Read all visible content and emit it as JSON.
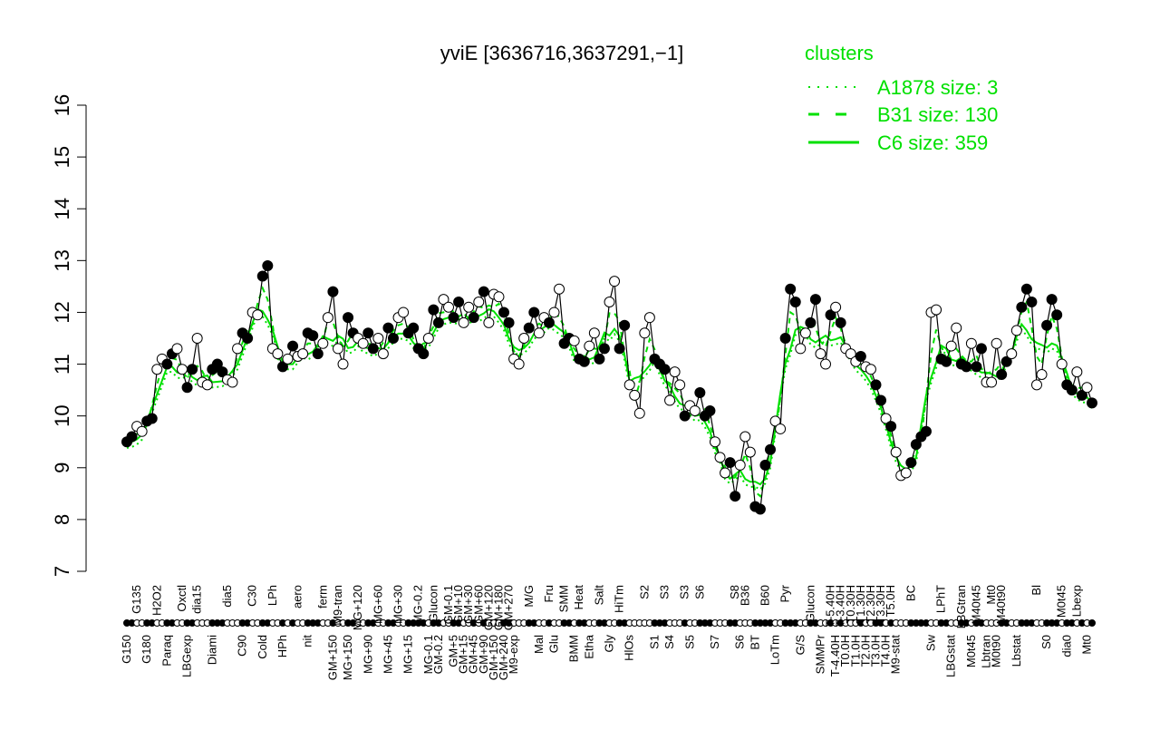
{
  "chart_data": {
    "type": "scatter",
    "title": "yviE [3636716,3637291,−1]",
    "xlabel": "",
    "ylabel": "",
    "ylim": [
      7,
      16
    ],
    "yticks": [
      7,
      8,
      9,
      10,
      11,
      12,
      13,
      14,
      15,
      16
    ],
    "grid": false,
    "legend": {
      "title": "clusters",
      "placement": "top-right",
      "entries": [
        {
          "name": "A1878 size: 3",
          "style": "dotted"
        },
        {
          "name": "B31 size: 130",
          "style": "dashed"
        },
        {
          "name": "C6 size: 359",
          "style": "solid"
        }
      ]
    },
    "colors": {
      "clusters": "#00e000",
      "points": "#000000"
    },
    "points": [
      [
        "G150",
        9.5,
        1
      ],
      [
        "G150",
        9.6,
        1
      ],
      [
        "G135",
        9.8,
        0
      ],
      [
        "G135",
        9.7,
        0
      ],
      [
        "G180",
        9.9,
        1
      ],
      [
        "G180",
        9.95,
        1
      ],
      [
        "H2O2",
        10.9,
        0
      ],
      [
        "H2O2",
        11.1,
        0
      ],
      [
        "Paraq",
        11.0,
        1
      ],
      [
        "Paraq",
        11.2,
        1
      ],
      [
        "Paraq",
        11.3,
        0
      ],
      [
        "Oxctl",
        10.9,
        0
      ],
      [
        "LBGexp",
        10.55,
        1
      ],
      [
        "LBGexp",
        10.9,
        1
      ],
      [
        "dia15",
        11.5,
        0
      ],
      [
        "dia15",
        10.65,
        0
      ],
      [
        "dia15",
        10.6,
        0
      ],
      [
        "Diami",
        10.9,
        1
      ],
      [
        "Diami",
        11.0,
        1
      ],
      [
        "Diami",
        10.85,
        1
      ],
      [
        "dia5",
        10.7,
        0
      ],
      [
        "dia5",
        10.65,
        0
      ],
      [
        "dia5",
        11.3,
        0
      ],
      [
        "C90",
        11.6,
        1
      ],
      [
        "C90",
        11.5,
        1
      ],
      [
        "C30",
        12.0,
        0
      ],
      [
        "C30",
        11.95,
        0
      ],
      [
        "Cold",
        12.7,
        1
      ],
      [
        "Cold",
        12.9,
        1
      ],
      [
        "LPh",
        11.3,
        0
      ],
      [
        "LPh",
        11.2,
        0
      ],
      [
        "HPh",
        10.95,
        1
      ],
      [
        "HPh",
        11.1,
        0
      ],
      [
        "HPh",
        11.35,
        1
      ],
      [
        "aero",
        11.15,
        0
      ],
      [
        "aero",
        11.2,
        0
      ],
      [
        "nit",
        11.6,
        1
      ],
      [
        "nit",
        11.55,
        1
      ],
      [
        "nit",
        11.2,
        1
      ],
      [
        "ferm",
        11.4,
        0
      ],
      [
        "ferm",
        11.9,
        0
      ],
      [
        "GM+150",
        12.4,
        1
      ],
      [
        "M9-tran",
        11.3,
        0
      ],
      [
        "M9-tran",
        11.0,
        0
      ],
      [
        "MG+150",
        11.9,
        1
      ],
      [
        "MG+150",
        11.6,
        1
      ],
      [
        "MG+120",
        11.5,
        0
      ],
      [
        "MG+120",
        11.4,
        0
      ],
      [
        "MG+90",
        11.6,
        1
      ],
      [
        "MG+90",
        11.3,
        1
      ],
      [
        "MG+60",
        11.5,
        0
      ],
      [
        "MG+60",
        11.2,
        0
      ],
      [
        "MG+45",
        11.7,
        1
      ],
      [
        "MG+45",
        11.5,
        1
      ],
      [
        "MG+30",
        11.9,
        0
      ],
      [
        "MG+30",
        12.0,
        0
      ],
      [
        "MG+15",
        11.6,
        1
      ],
      [
        "MG+15",
        11.7,
        1
      ],
      [
        "MG-0.2",
        11.3,
        1
      ],
      [
        "MG-0.2",
        11.2,
        1
      ],
      [
        "MG-0.1",
        11.5,
        0
      ],
      [
        "Glucon",
        12.05,
        1
      ],
      [
        "GM-0.2",
        11.8,
        1
      ],
      [
        "GM-0.2",
        12.25,
        0
      ],
      [
        "GM-0.1",
        12.1,
        0
      ],
      [
        "GM+5",
        11.9,
        1
      ],
      [
        "GM+10",
        12.2,
        1
      ],
      [
        "GM+15",
        11.8,
        0
      ],
      [
        "GM+30",
        12.1,
        0
      ],
      [
        "GM+45",
        11.9,
        1
      ],
      [
        "GM+60",
        12.2,
        0
      ],
      [
        "GM+90",
        12.4,
        1
      ],
      [
        "GM+120",
        11.8,
        0
      ],
      [
        "GM+150",
        12.35,
        0
      ],
      [
        "GM+180",
        12.3,
        0
      ],
      [
        "GM+240",
        12.0,
        1
      ],
      [
        "GM+270",
        11.8,
        1
      ],
      [
        "M9-exp",
        11.1,
        0
      ],
      [
        "M9-exp",
        11.0,
        0
      ],
      [
        "M9-exp",
        11.5,
        0
      ],
      [
        "M/G",
        11.7,
        1
      ],
      [
        "M/G",
        12.0,
        1
      ],
      [
        "Mal",
        11.6,
        0
      ],
      [
        "Mal",
        11.9,
        0
      ],
      [
        "Fru",
        11.8,
        1
      ],
      [
        "Glu",
        12.0,
        0
      ],
      [
        "Glu",
        12.45,
        0
      ],
      [
        "SMM",
        11.4,
        1
      ],
      [
        "SMM",
        11.5,
        1
      ],
      [
        "BMM",
        11.45,
        0
      ],
      [
        "Heat",
        11.1,
        1
      ],
      [
        "Heat",
        11.05,
        1
      ],
      [
        "Etha",
        11.35,
        0
      ],
      [
        "Etha",
        11.6,
        0
      ],
      [
        "Salt",
        11.1,
        1
      ],
      [
        "Salt",
        11.3,
        1
      ],
      [
        "Gly",
        12.2,
        0
      ],
      [
        "Gly",
        12.6,
        0
      ],
      [
        "HiTm",
        11.3,
        1
      ],
      [
        "HiTm",
        11.75,
        1
      ],
      [
        "HlOs",
        10.6,
        0
      ],
      [
        "HlOs",
        10.4,
        0
      ],
      [
        "HlOs",
        10.05,
        0
      ],
      [
        "S2",
        11.6,
        0
      ],
      [
        "S2",
        11.9,
        0
      ],
      [
        "S1",
        11.1,
        1
      ],
      [
        "S1",
        11.0,
        1
      ],
      [
        "S3",
        10.9,
        1
      ],
      [
        "S4",
        10.3,
        0
      ],
      [
        "S4",
        10.85,
        0
      ],
      [
        "S4",
        10.6,
        0
      ],
      [
        "S3",
        10.0,
        1
      ],
      [
        "S5",
        10.2,
        0
      ],
      [
        "S5",
        10.1,
        0
      ],
      [
        "S6",
        10.45,
        1
      ],
      [
        "S6",
        10.0,
        1
      ],
      [
        "S6",
        10.1,
        1
      ],
      [
        "S7",
        9.5,
        0
      ],
      [
        "S7",
        9.2,
        0
      ],
      [
        "S7",
        8.9,
        0
      ],
      [
        "S7",
        9.1,
        1
      ],
      [
        "S8",
        8.45,
        1
      ],
      [
        "S6",
        9.05,
        0
      ],
      [
        "B36",
        9.6,
        0
      ],
      [
        "B36",
        9.3,
        0
      ],
      [
        "BT",
        8.25,
        1
      ],
      [
        "BT",
        8.2,
        1
      ],
      [
        "B60",
        9.05,
        1
      ],
      [
        "B60",
        9.35,
        1
      ],
      [
        "LoTm",
        9.9,
        0
      ],
      [
        "LoTm",
        9.75,
        0
      ],
      [
        "Pyr",
        11.5,
        1
      ],
      [
        "Pyr",
        12.45,
        1
      ],
      [
        "Pyr",
        12.2,
        1
      ],
      [
        "G/S",
        11.3,
        0
      ],
      [
        "G/S",
        11.6,
        0
      ],
      [
        "Glucon",
        11.8,
        1
      ],
      [
        "Glucon",
        12.25,
        1
      ],
      [
        "SMMPr",
        11.2,
        0
      ],
      [
        "SMMPr",
        11.0,
        0
      ],
      [
        "T-5.40H",
        11.95,
        1
      ],
      [
        "T-4.40H",
        12.1,
        0
      ],
      [
        "T-3.40H",
        11.8,
        1
      ],
      [
        "T0.0H",
        11.3,
        0
      ],
      [
        "T0.30H",
        11.2,
        0
      ],
      [
        "T1.0H",
        11.05,
        0
      ],
      [
        "T1.30H",
        11.15,
        1
      ],
      [
        "T2.0H",
        10.95,
        0
      ],
      [
        "T2.30H",
        10.9,
        0
      ],
      [
        "T3.0H",
        10.6,
        1
      ],
      [
        "T3.30H",
        10.3,
        1
      ],
      [
        "T4.0H",
        9.95,
        0
      ],
      [
        "T5.0H",
        9.8,
        1
      ],
      [
        "M9-stat",
        9.3,
        0
      ],
      [
        "M9-stat",
        8.85,
        0
      ],
      [
        "M9-stat",
        8.9,
        0
      ],
      [
        "BC",
        9.1,
        1
      ],
      [
        "BC",
        9.45,
        1
      ],
      [
        "BC",
        9.6,
        1
      ],
      [
        "BC",
        9.7,
        1
      ],
      [
        "Sw",
        12.0,
        0
      ],
      [
        "Sw",
        12.05,
        0
      ],
      [
        "LPhT",
        11.1,
        1
      ],
      [
        "LPhT",
        11.05,
        1
      ],
      [
        "LBGstat",
        11.35,
        0
      ],
      [
        "LBGstat",
        11.7,
        0
      ],
      [
        "LBGtran",
        11.0,
        1
      ],
      [
        "LBGtran",
        10.95,
        1
      ],
      [
        "M0t45",
        11.4,
        0
      ],
      [
        "M40t45",
        10.95,
        1
      ],
      [
        "M40t45",
        11.3,
        1
      ],
      [
        "Lbtran",
        10.65,
        0
      ],
      [
        "Mt0",
        10.65,
        0
      ],
      [
        "M0t90",
        11.4,
        0
      ],
      [
        "M40t90",
        10.8,
        1
      ],
      [
        "M40t90",
        11.05,
        1
      ],
      [
        "M40t90",
        11.2,
        0
      ],
      [
        "Lbstat",
        11.65,
        0
      ],
      [
        "Lbstat",
        12.1,
        1
      ],
      [
        "Lbstat",
        12.45,
        1
      ],
      [
        "Lbstat",
        12.2,
        1
      ],
      [
        "Bl",
        10.6,
        0
      ],
      [
        "Bl",
        10.8,
        0
      ],
      [
        "S0",
        11.75,
        1
      ],
      [
        "S0",
        12.25,
        1
      ],
      [
        "S0",
        11.95,
        1
      ],
      [
        "M0t45",
        11.0,
        0
      ],
      [
        "dia0",
        10.6,
        1
      ],
      [
        "dia0",
        10.5,
        1
      ],
      [
        "Lbexp",
        10.85,
        0
      ],
      [
        "Lbexp",
        10.4,
        1
      ],
      [
        "Mt0",
        10.55,
        0
      ],
      [
        "Mt0",
        10.25,
        1
      ]
    ]
  }
}
